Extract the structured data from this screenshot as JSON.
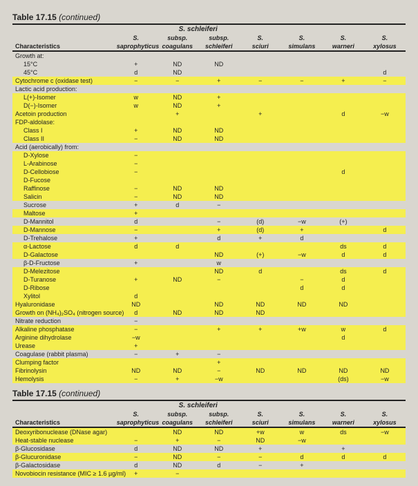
{
  "title": "Table 17.15",
  "continued": "(continued)",
  "schleiferi_group": "S. schleiferi",
  "header": {
    "characteristics": "Characteristics",
    "cols": [
      {
        "top": "S.",
        "bot": "saprophyticus"
      },
      {
        "top": "subsp.",
        "bot": "coagulans"
      },
      {
        "top": "subsp.",
        "bot": "schleiferi"
      },
      {
        "top": "S.",
        "bot": "sciuri"
      },
      {
        "top": "S.",
        "bot": "simulans"
      },
      {
        "top": "S.",
        "bot": "warneri"
      },
      {
        "top": "S.",
        "bot": "xylosus"
      }
    ]
  },
  "rowsA": [
    {
      "l": "Growth at:",
      "i": 0,
      "v": [
        "",
        "",
        "",
        "",
        "",
        "",
        ""
      ],
      "hl": 0
    },
    {
      "l": "15°C",
      "i": 1,
      "v": [
        "+",
        "ND",
        "ND",
        "",
        "",
        "",
        ""
      ],
      "hl": 0
    },
    {
      "l": "45°C",
      "i": 1,
      "v": [
        "d",
        "ND",
        "",
        "",
        "",
        "",
        "d"
      ],
      "hl": 0
    },
    {
      "l": "Cytochrome c (oxidase test)",
      "i": 0,
      "v": [
        "−",
        "−",
        "+",
        "−",
        "−",
        "+",
        "−"
      ],
      "hl": 1
    },
    {
      "l": "Lactic acid production:",
      "i": 0,
      "v": [
        "",
        "",
        "",
        "",
        "",
        "",
        ""
      ],
      "hl": 0
    },
    {
      "l": "L(+)-Isomer",
      "i": 1,
      "v": [
        "w",
        "ND",
        "+",
        "",
        "",
        "",
        ""
      ],
      "hl": 1
    },
    {
      "l": "D(−)-Isomer",
      "i": 1,
      "v": [
        "w",
        "ND",
        "+",
        "",
        "",
        "",
        ""
      ],
      "hl": 1
    },
    {
      "l": "Acetoin production",
      "i": 0,
      "v": [
        "",
        "+",
        "",
        "+",
        "",
        "d",
        "−w"
      ],
      "hl": 1
    },
    {
      "l": "FDP-aldolase:",
      "i": 0,
      "v": [
        "",
        "",
        "",
        "",
        "",
        "",
        ""
      ],
      "hl": 1
    },
    {
      "l": "Class I",
      "i": 1,
      "v": [
        "+",
        "ND",
        "ND",
        "",
        "",
        "",
        ""
      ],
      "hl": 1
    },
    {
      "l": "Class II",
      "i": 1,
      "v": [
        "−",
        "ND",
        "ND",
        "",
        "",
        "",
        ""
      ],
      "hl": 1
    },
    {
      "l": "Acid (aerobically) from:",
      "i": 0,
      "v": [
        "",
        "",
        "",
        "",
        "",
        "",
        ""
      ],
      "hl": 0
    },
    {
      "l": "D-Xylose",
      "i": 1,
      "v": [
        "−",
        "",
        "",
        "",
        "",
        "",
        ""
      ],
      "hl": 1
    },
    {
      "l": "L-Arabinose",
      "i": 1,
      "v": [
        "−",
        "",
        "",
        "",
        "",
        "",
        ""
      ],
      "hl": 1
    },
    {
      "l": "D-Cellobiose",
      "i": 1,
      "v": [
        "−",
        "",
        "",
        "",
        "",
        "d",
        ""
      ],
      "hl": 1
    },
    {
      "l": "D-Fucose",
      "i": 1,
      "v": [
        "",
        "",
        "",
        "",
        "",
        "",
        ""
      ],
      "hl": 1
    },
    {
      "l": "Raffinose",
      "i": 1,
      "v": [
        "−",
        "ND",
        "ND",
        "",
        "",
        "",
        ""
      ],
      "hl": 1
    },
    {
      "l": "Salicin",
      "i": 1,
      "v": [
        "−",
        "ND",
        "ND",
        "",
        "",
        "",
        ""
      ],
      "hl": 1
    },
    {
      "l": "Sucrose",
      "i": 1,
      "v": [
        "+",
        "d",
        "−",
        "",
        "",
        "",
        ""
      ],
      "hl": 0
    },
    {
      "l": "Maltose",
      "i": 1,
      "v": [
        "+",
        "",
        "",
        "",
        "",
        "",
        ""
      ],
      "hl": 1
    },
    {
      "l": "D-Mannitol",
      "i": 1,
      "v": [
        "d",
        "",
        "−",
        "(d)",
        "−w",
        "(+)",
        ""
      ],
      "hl": 0
    },
    {
      "l": "D-Mannose",
      "i": 1,
      "v": [
        "−",
        "",
        "+",
        "(d)",
        "+",
        "",
        "d"
      ],
      "hl": 1
    },
    {
      "l": "D-Trehalose",
      "i": 1,
      "v": [
        "+",
        "",
        "d",
        "+",
        "d",
        "",
        ""
      ],
      "hl": 0
    },
    {
      "l": "α-Lactose",
      "i": 1,
      "v": [
        "d",
        "d",
        "",
        "",
        "",
        "ds",
        "d"
      ],
      "hl": 1
    },
    {
      "l": "D-Galactose",
      "i": 1,
      "v": [
        "",
        "",
        "ND",
        "(+)",
        "−w",
        "d",
        "d"
      ],
      "hl": 1
    },
    {
      "l": "β-D-Fructose",
      "i": 1,
      "v": [
        "+",
        "",
        "w",
        "",
        "",
        "",
        ""
      ],
      "hl": 0
    },
    {
      "l": "D-Melezitose",
      "i": 1,
      "v": [
        "",
        "",
        "ND",
        "d",
        "",
        "ds",
        "d"
      ],
      "hl": 1
    },
    {
      "l": "D-Turanose",
      "i": 1,
      "v": [
        "+",
        "ND",
        "−",
        "",
        "−",
        "d",
        ""
      ],
      "hl": 1
    },
    {
      "l": "D-Ribose",
      "i": 1,
      "v": [
        "",
        "",
        "",
        "",
        "d",
        "d",
        ""
      ],
      "hl": 1
    },
    {
      "l": "Xylitol",
      "i": 1,
      "v": [
        "d",
        "",
        "",
        "",
        "",
        "",
        ""
      ],
      "hl": 1
    },
    {
      "l": "Hyaluronidase",
      "i": 0,
      "v": [
        "ND",
        "",
        "ND",
        "ND",
        "ND",
        "ND",
        ""
      ],
      "hl": 1
    },
    {
      "l": "Growth on (NH₄)₂SO₄ (nitrogen source)",
      "i": 0,
      "v": [
        "d",
        "ND",
        "ND",
        "ND",
        "",
        "",
        ""
      ],
      "hl": 1
    },
    {
      "l": "Nitrate reduction",
      "i": 0,
      "v": [
        "−",
        "",
        "",
        "",
        "",
        "",
        ""
      ],
      "hl": 0
    },
    {
      "l": "Alkaline phosphatase",
      "i": 0,
      "v": [
        "−",
        "",
        "+",
        "+",
        "+w",
        "w",
        "d"
      ],
      "hl": 1
    },
    {
      "l": "Arginine dihydrolase",
      "i": 0,
      "v": [
        "−w",
        "",
        "",
        "",
        "",
        "d",
        ""
      ],
      "hl": 1
    },
    {
      "l": "Urease",
      "i": 0,
      "v": [
        "+",
        "",
        "",
        "",
        "",
        "",
        ""
      ],
      "hl": 1
    },
    {
      "l": "Coagulase (rabbit plasma)",
      "i": 0,
      "v": [
        "−",
        "+",
        "−",
        "",
        "",
        "",
        ""
      ],
      "hl": 0
    },
    {
      "l": "Clumping factor",
      "i": 0,
      "v": [
        "",
        "",
        "+",
        "",
        "",
        "",
        ""
      ],
      "hl": 1
    },
    {
      "l": "Fibrinolysin",
      "i": 0,
      "v": [
        "ND",
        "ND",
        "−",
        "ND",
        "ND",
        "ND",
        "ND"
      ],
      "hl": 1
    },
    {
      "l": "Hemolysis",
      "i": 0,
      "v": [
        "−",
        "+",
        "−w",
        "",
        "",
        "(ds)",
        "−w"
      ],
      "hl": 1
    }
  ],
  "rowsB": [
    {
      "l": "Deoxyribonuclease (DNase agar)",
      "i": 0,
      "v": [
        "",
        "ND",
        "ND",
        "+w",
        "w",
        "ds",
        "−w"
      ],
      "hl": 1
    },
    {
      "l": "Heat-stable nuclease",
      "i": 0,
      "v": [
        "−",
        "+",
        "−",
        "ND",
        "−w",
        "",
        ""
      ],
      "hl": 1
    },
    {
      "l": "β-Glucosidase",
      "i": 0,
      "v": [
        "d",
        "ND",
        "ND",
        "+",
        "",
        "+",
        ""
      ],
      "hl": 0
    },
    {
      "l": "β-Glucuronidase",
      "i": 0,
      "v": [
        "−",
        "ND",
        "−",
        "−",
        "d",
        "d",
        "d"
      ],
      "hl": 1
    },
    {
      "l": "β-Galactosidase",
      "i": 0,
      "v": [
        "d",
        "ND",
        "d",
        "−",
        "+",
        "",
        ""
      ],
      "hl": 0
    },
    {
      "l": "Novobiocin resistance (MIC ≥ 1.6 µg/ml)",
      "i": 0,
      "v": [
        "+",
        "−",
        "",
        "",
        "",
        "",
        ""
      ],
      "hl": 1
    }
  ]
}
